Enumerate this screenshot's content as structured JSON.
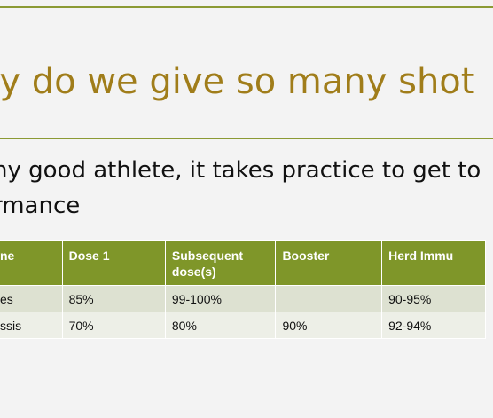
{
  "slide": {
    "title": "hy do we give so many shot",
    "bullet_lines": [
      "ny good athlete, it takes practice to get to",
      "rmance"
    ]
  },
  "table": {
    "headers": [
      "ne",
      "Dose 1",
      "Subsequent dose(s)",
      "Booster",
      "Herd Immu"
    ],
    "rows": [
      [
        "es",
        "85%",
        "99-100%",
        "",
        "90-95%"
      ],
      [
        "ssis",
        "70%",
        "80%",
        "90%",
        "92-94%"
      ]
    ]
  },
  "colors": {
    "accent_rule": "#8b9a34",
    "title_text": "#a07d1a",
    "header_fill": "#7f9629",
    "row_fill_1": "#dde1d1",
    "row_fill_2": "#edefe7"
  }
}
